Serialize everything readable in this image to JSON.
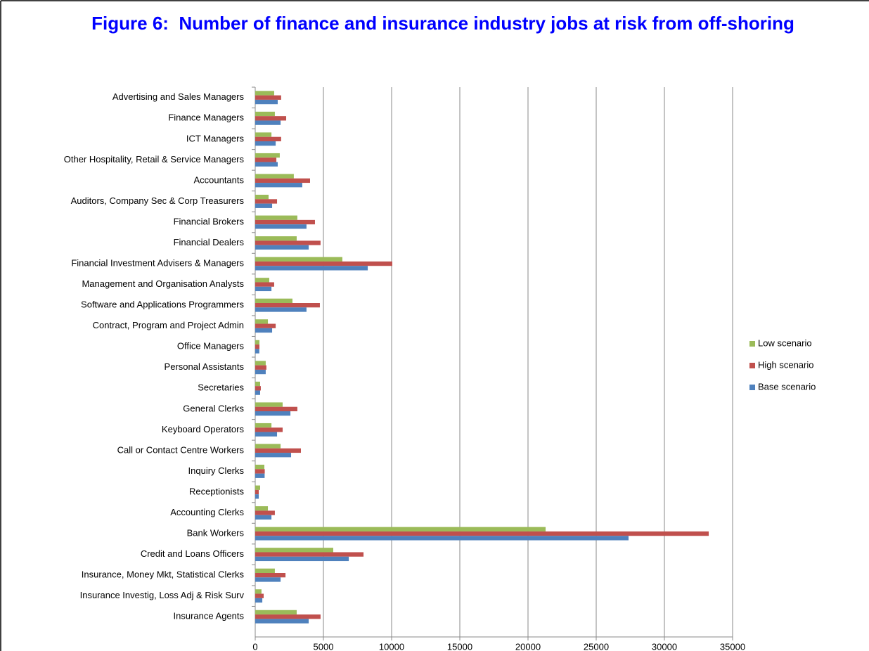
{
  "chart_data": {
    "type": "hbar",
    "title": "Figure 6:  Number of finance and insurance industry jobs at risk from off-shoring",
    "categories": [
      "Advertising and Sales Managers",
      "Finance Managers",
      "ICT Managers",
      "Other Hospitality,  Retail & Service Managers",
      "Accountants",
      "Auditors, Company  Sec & Corp Treasurers",
      "Financial Brokers",
      "Financial Dealers",
      "Financial Investment Advisers & Managers",
      "Management and Organisation  Analysts",
      "Software and Applications  Programmers",
      "Contract,  Program and Project Admin",
      "Office Managers",
      "Personal Assistants",
      "Secretaries",
      "General Clerks",
      "Keyboard Operators",
      "Call or Contact Centre Workers",
      "Inquiry Clerks",
      "Receptionists",
      "Accounting Clerks",
      "Bank Workers",
      "Credit and Loans Officers",
      "Insurance, Money Mkt,  Statistical  Clerks",
      "Insurance Investig, Loss Adj & Risk Surv",
      "Insurance Agents"
    ],
    "series": [
      {
        "name": "Low scenario",
        "color": "#9bbb59",
        "values": [
          1390,
          1440,
          1190,
          1800,
          2830,
          980,
          3090,
          3040,
          6390,
          1030,
          2730,
          930,
          310,
          770,
          360,
          2010,
          1190,
          1860,
          670,
          360,
          930,
          21290,
          5720,
          1440,
          460,
          3040
        ]
      },
      {
        "name": "High scenario",
        "color": "#c0504d",
        "values": [
          1900,
          2270,
          1900,
          1550,
          4020,
          1600,
          4380,
          4790,
          10050,
          1390,
          4740,
          1500,
          310,
          820,
          410,
          3090,
          2010,
          3350,
          700,
          260,
          1440,
          33250,
          7940,
          2220,
          620,
          4790
        ]
      },
      {
        "name": "Base scenario",
        "color": "#4f81bd",
        "values": [
          1650,
          1860,
          1500,
          1650,
          3450,
          1240,
          3760,
          3920,
          8250,
          1190,
          3760,
          1240,
          300,
          770,
          360,
          2580,
          1600,
          2630,
          690,
          260,
          1190,
          27370,
          6860,
          1860,
          520,
          3920
        ]
      }
    ],
    "xlim": [
      0,
      35000
    ],
    "xticks": [
      0,
      5000,
      10000,
      15000,
      20000,
      25000,
      30000,
      35000
    ],
    "grid": true
  }
}
